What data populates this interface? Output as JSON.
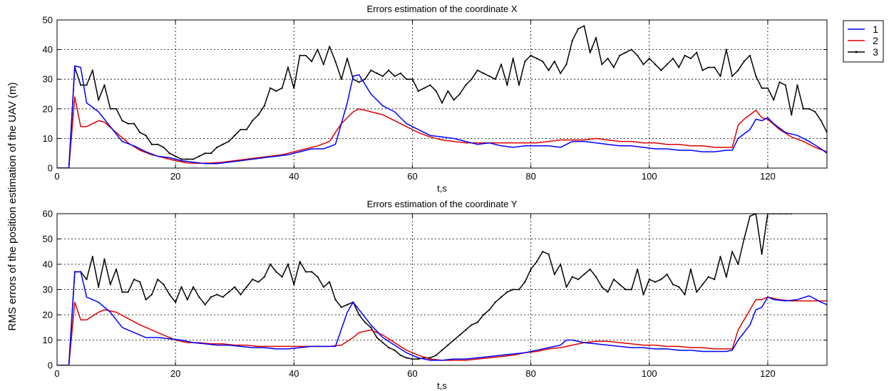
{
  "ylabel": "RMS errors of the position estimation of the UAV (m)",
  "legend": {
    "placement": "top-right",
    "entries": [
      {
        "label": "1",
        "color": "#0000ff"
      },
      {
        "label": "2",
        "color": "#dd0000"
      },
      {
        "label": "3",
        "color": "#000000",
        "marker": "dot"
      }
    ]
  },
  "chart_data": [
    {
      "type": "line",
      "title": "Errors estimation of the coordinate X",
      "xlabel": "t,s",
      "xlim": [
        0,
        130
      ],
      "ylim": [
        0,
        50
      ],
      "xticks": [
        0,
        20,
        40,
        60,
        80,
        100,
        120
      ],
      "yticks": [
        0,
        10,
        20,
        30,
        40,
        50
      ],
      "grid": true,
      "series": [
        {
          "name": "1",
          "color": "#0000ff",
          "x": [
            0,
            2,
            3,
            4,
            5,
            7,
            9,
            11,
            13,
            15,
            17,
            19,
            21,
            23,
            25,
            27,
            29,
            31,
            33,
            35,
            37,
            39,
            41,
            43,
            45,
            47,
            49,
            50,
            51,
            53,
            55,
            57,
            59,
            61,
            63,
            65,
            67,
            69,
            71,
            73,
            75,
            77,
            79,
            81,
            83,
            85,
            87,
            89,
            91,
            93,
            95,
            97,
            99,
            101,
            103,
            105,
            107,
            109,
            111,
            113,
            114,
            115,
            117,
            118,
            119,
            120,
            121,
            123,
            125,
            127,
            129,
            130
          ],
          "y": [
            0,
            0,
            34.5,
            34,
            22,
            19,
            14,
            9,
            7.5,
            5.5,
            4,
            3.5,
            2.5,
            2,
            1.5,
            1.5,
            2,
            2.5,
            3,
            3.5,
            4,
            4.5,
            5.5,
            6.5,
            6.5,
            8,
            22,
            31,
            31.5,
            25,
            21,
            19,
            15,
            13,
            11,
            10.5,
            10,
            9,
            8,
            8.5,
            7.5,
            7,
            7.5,
            7.5,
            7.5,
            7,
            9,
            9,
            8.5,
            8,
            7.5,
            7.5,
            7,
            6.5,
            6.5,
            6,
            6,
            5.5,
            5.5,
            6,
            6,
            10,
            13,
            16.5,
            16,
            17,
            15,
            12,
            11,
            9,
            6.5,
            5
          ]
        },
        {
          "name": "2",
          "color": "#dd0000",
          "x": [
            0,
            2,
            3,
            4,
            5,
            6,
            7,
            8,
            10,
            12,
            14,
            16,
            18,
            20,
            22,
            24,
            26,
            28,
            30,
            32,
            34,
            36,
            38,
            40,
            42,
            44,
            46,
            48,
            50,
            51,
            53,
            55,
            57,
            59,
            61,
            63,
            65,
            67,
            69,
            71,
            73,
            75,
            77,
            79,
            81,
            83,
            85,
            87,
            89,
            91,
            93,
            95,
            97,
            99,
            101,
            103,
            105,
            107,
            109,
            111,
            113,
            114,
            115,
            116,
            118,
            119,
            120,
            122,
            124,
            126,
            128,
            130
          ],
          "y": [
            0,
            0,
            24,
            14,
            14,
            15,
            16,
            15.5,
            12,
            8.5,
            6,
            4.5,
            3.5,
            2.5,
            1.7,
            1.6,
            1.7,
            2,
            2.5,
            3,
            3.5,
            4,
            4.5,
            5.5,
            6.5,
            7.5,
            9,
            15,
            19,
            20,
            19,
            18,
            16,
            14,
            12,
            10.5,
            9.5,
            9,
            8.5,
            8.5,
            8.5,
            8.5,
            8.5,
            8.5,
            8.5,
            9,
            9.5,
            9.5,
            9.5,
            10,
            9.5,
            9,
            9,
            8.5,
            8.5,
            8,
            8,
            7.5,
            7.5,
            7,
            7,
            7,
            14.5,
            16.5,
            19.5,
            17,
            16.5,
            13,
            10.5,
            9,
            7,
            5.5
          ]
        },
        {
          "name": "3",
          "color": "#000000",
          "marker": "dot",
          "x": [
            0,
            2,
            3,
            4,
            5,
            6,
            7,
            8,
            9,
            10,
            11,
            12,
            13,
            14,
            15,
            16,
            17,
            18,
            19,
            20,
            21,
            22,
            23,
            24,
            25,
            26,
            27,
            28,
            29,
            30,
            31,
            32,
            33,
            34,
            35,
            36,
            37,
            38,
            39,
            40,
            41,
            42,
            43,
            44,
            45,
            46,
            47,
            48,
            49,
            50,
            51,
            52,
            53,
            54,
            55,
            56,
            57,
            58,
            59,
            60,
            61,
            62,
            63,
            64,
            65,
            66,
            67,
            68,
            69,
            70,
            71,
            72,
            73,
            74,
            75,
            76,
            77,
            78,
            79,
            80,
            81,
            82,
            83,
            84,
            85,
            86,
            87,
            88,
            89,
            90,
            91,
            92,
            93,
            94,
            95,
            96,
            97,
            98,
            99,
            100,
            101,
            102,
            103,
            104,
            105,
            106,
            107,
            108,
            109,
            110,
            111,
            112,
            113,
            114,
            115,
            116,
            117,
            118,
            119,
            120,
            121,
            122,
            123,
            124,
            125,
            126,
            127,
            128,
            129,
            130
          ],
          "y": [
            0,
            0,
            34,
            28,
            28,
            33,
            23,
            28,
            20,
            20,
            16,
            15,
            15,
            12,
            11,
            8,
            8,
            7,
            5,
            4,
            3,
            3,
            3,
            4,
            5,
            5,
            7,
            8,
            9,
            11,
            13,
            13,
            16,
            18,
            21,
            27,
            26,
            27,
            34,
            27,
            38,
            38,
            36,
            40,
            35,
            41,
            36,
            30,
            37,
            30,
            29,
            30,
            33,
            32,
            31,
            33,
            31,
            32,
            30,
            30,
            26,
            27,
            28,
            26,
            22,
            26,
            23,
            25,
            28,
            30,
            33,
            32,
            31,
            30,
            35,
            28,
            37,
            28,
            36,
            38,
            37,
            36,
            33,
            36,
            32,
            35,
            43,
            47,
            48,
            39,
            44,
            35,
            37,
            34,
            38,
            39,
            40,
            38,
            35,
            37,
            35,
            33,
            35,
            37,
            34,
            38,
            37,
            39,
            33,
            34,
            34,
            31,
            40,
            31,
            33,
            36,
            38,
            31,
            27,
            27,
            23,
            29,
            28,
            18,
            28,
            20,
            20,
            19,
            16,
            12
          ]
        }
      ]
    },
    {
      "type": "line",
      "title": "Errors estimation of the coordinate Y",
      "xlabel": "t,s",
      "xlim": [
        0,
        130
      ],
      "ylim": [
        0,
        60
      ],
      "xticks": [
        0,
        20,
        40,
        60,
        80,
        100,
        120
      ],
      "yticks": [
        0,
        10,
        20,
        30,
        40,
        50,
        60
      ],
      "grid": true,
      "series": [
        {
          "name": "1",
          "color": "#0000ff",
          "x": [
            0,
            2,
            3,
            4,
            5,
            7,
            9,
            11,
            13,
            15,
            17,
            19,
            21,
            23,
            25,
            27,
            29,
            31,
            33,
            35,
            37,
            39,
            41,
            43,
            45,
            47,
            49,
            50,
            51,
            53,
            55,
            57,
            59,
            61,
            63,
            65,
            67,
            69,
            71,
            73,
            75,
            77,
            79,
            81,
            83,
            85,
            86,
            87,
            89,
            91,
            93,
            95,
            97,
            99,
            101,
            103,
            105,
            107,
            109,
            111,
            113,
            114,
            115,
            117,
            118,
            119,
            120,
            121,
            123,
            125,
            127,
            129,
            130
          ],
          "y": [
            0,
            0,
            37,
            37,
            27,
            25,
            21,
            15,
            13,
            11,
            11,
            10.5,
            10,
            9,
            8.5,
            8,
            8,
            7.5,
            7,
            7,
            6.5,
            6.5,
            7,
            7.5,
            7.5,
            7.5,
            21,
            25,
            22,
            16,
            11,
            8,
            5,
            3,
            2,
            2,
            2.5,
            2.5,
            3,
            3.5,
            4,
            4.5,
            5,
            6,
            7,
            8,
            10,
            10,
            9,
            8.5,
            8,
            7.5,
            7,
            7,
            6.5,
            6.5,
            6,
            6,
            5.5,
            5.5,
            5.5,
            6,
            10,
            16,
            22,
            23,
            27,
            26,
            25.5,
            26,
            27.5,
            25,
            24
          ]
        },
        {
          "name": "2",
          "color": "#dd0000",
          "x": [
            0,
            2,
            3,
            4,
            5,
            6,
            7,
            8,
            10,
            12,
            14,
            16,
            18,
            20,
            22,
            24,
            26,
            28,
            30,
            32,
            34,
            36,
            38,
            40,
            42,
            44,
            46,
            48,
            50,
            51,
            53,
            55,
            57,
            59,
            61,
            63,
            65,
            67,
            69,
            71,
            73,
            75,
            77,
            79,
            81,
            83,
            85,
            87,
            89,
            91,
            93,
            95,
            97,
            99,
            101,
            103,
            105,
            107,
            109,
            111,
            113,
            114,
            115,
            116,
            118,
            119,
            120,
            122,
            124,
            126,
            128,
            130
          ],
          "y": [
            0,
            0,
            25,
            18,
            18,
            19.5,
            21,
            22,
            21,
            18.5,
            16,
            14,
            12,
            10,
            9,
            9,
            8.5,
            8.5,
            8,
            8,
            7.5,
            7.5,
            7.5,
            7.5,
            7.5,
            7.5,
            7.5,
            8,
            11,
            13,
            14,
            12,
            9,
            6,
            4,
            2.5,
            2,
            2,
            2,
            2.5,
            3,
            3.5,
            4,
            5,
            5.5,
            6.5,
            7,
            8,
            9,
            9.5,
            9.5,
            9,
            8.5,
            8,
            8,
            7.5,
            7.5,
            7,
            7,
            6.5,
            6.5,
            6.5,
            14,
            18,
            26,
            26,
            27,
            26,
            25.5,
            25.5,
            25.5,
            25.5
          ]
        },
        {
          "name": "3",
          "color": "#000000",
          "marker": "dot",
          "x": [
            0,
            2,
            3,
            4,
            5,
            6,
            7,
            8,
            9,
            10,
            11,
            12,
            13,
            14,
            15,
            16,
            17,
            18,
            19,
            20,
            21,
            22,
            23,
            24,
            25,
            26,
            27,
            28,
            29,
            30,
            31,
            32,
            33,
            34,
            35,
            36,
            37,
            38,
            39,
            40,
            41,
            42,
            43,
            44,
            45,
            46,
            47,
            48,
            49,
            50,
            51,
            52,
            53,
            54,
            55,
            56,
            57,
            58,
            59,
            60,
            61,
            62,
            63,
            64,
            65,
            66,
            67,
            68,
            69,
            70,
            71,
            72,
            73,
            74,
            75,
            76,
            77,
            78,
            79,
            80,
            81,
            82,
            83,
            84,
            85,
            86,
            87,
            88,
            89,
            90,
            91,
            92,
            93,
            94,
            95,
            96,
            97,
            98,
            99,
            100,
            101,
            102,
            103,
            104,
            105,
            106,
            107,
            108,
            109,
            110,
            111,
            112,
            113,
            114,
            115,
            116,
            117,
            118,
            119,
            120,
            121,
            122,
            123,
            124
          ],
          "y": [
            0,
            0,
            37,
            37,
            34,
            43,
            31,
            42,
            32,
            38,
            29,
            29,
            34,
            33,
            26,
            28,
            34,
            32,
            28,
            25,
            31,
            26,
            31,
            27,
            24,
            27,
            28,
            27,
            29,
            31,
            28,
            31,
            34,
            33,
            35,
            40,
            37,
            35,
            40,
            32,
            41,
            37,
            37,
            35,
            31,
            33,
            26,
            23,
            24,
            25,
            20,
            17,
            15,
            11,
            9,
            7,
            6,
            4,
            3,
            2.5,
            2.5,
            3,
            3,
            4,
            6,
            8,
            10,
            12,
            14,
            16,
            17,
            20,
            22,
            25,
            27,
            29,
            30,
            30,
            33,
            38,
            41,
            45,
            44,
            36,
            40,
            31,
            35,
            34,
            36,
            38,
            35,
            31,
            29,
            34,
            32,
            30,
            30,
            38,
            28,
            34,
            33,
            34,
            36,
            32,
            31,
            28,
            38,
            29,
            32,
            35,
            34,
            43,
            35,
            45,
            40,
            50,
            59,
            60,
            44,
            60,
            60,
            60,
            60,
            60
          ]
        }
      ]
    }
  ]
}
